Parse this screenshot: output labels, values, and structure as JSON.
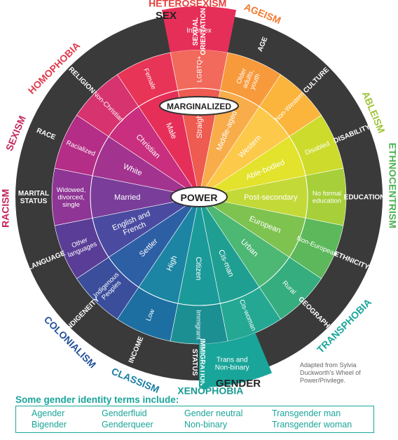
{
  "sectors": [
    {
      "key": "sexual-orientation",
      "outer_label": "HETEROSEXISM",
      "outer_color": "#e8413e",
      "ring_label": "SEXUAL ORIENTATION",
      "marginalized": "LGBTQ+",
      "privileged": "Straight",
      "marg_color": "#f26a5c",
      "priv_color": "#ee5b50"
    },
    {
      "key": "age",
      "outer_label": "AGEISM",
      "outer_color": "#f47a30",
      "ring_label": "AGE",
      "marginalized": "Older adults, youth",
      "privileged": "Middle-aged",
      "marg_color": "#f79a3c",
      "priv_color": "#f8ac4a"
    },
    {
      "key": "culture",
      "outer_label": "",
      "outer_color": "",
      "ring_label": "CULTURE",
      "marginalized": "Non-Western",
      "privileged": "Western",
      "marg_color": "#fbb53c",
      "priv_color": "#fcc94a"
    },
    {
      "key": "disability",
      "outer_label": "ABLEISM",
      "outer_color": "#9fc43a",
      "ring_label": "DISABILITY",
      "marginalized": "Disabled",
      "privileged": "Able-bodied",
      "marg_color": "#cddb2c",
      "priv_color": "#e3e22c"
    },
    {
      "key": "education",
      "outer_label": "ETHNOCENTRISM",
      "outer_color": "#4cb050",
      "ring_label": "EDUCATION",
      "marginalized": "No formal education",
      "privileged": "Post-secondary",
      "marg_color": "#a7cf3a",
      "priv_color": "#c3d938"
    },
    {
      "key": "ethnicity",
      "outer_label": "",
      "outer_color": "",
      "ring_label": "ETHNICITY",
      "marginalized": "Non-European",
      "privileged": "European",
      "marg_color": "#5cb85a",
      "priv_color": "#7ec34f"
    },
    {
      "key": "geography",
      "outer_label": "TRANSPHOBIA",
      "outer_color": "#1aa59a",
      "ring_label": "GEOGRAPHY",
      "marginalized": "Rural",
      "privileged": "Urban",
      "marg_color": "#35ad7e",
      "priv_color": "#4db774"
    },
    {
      "key": "gender",
      "outer_label": "",
      "outer_color": "",
      "ring_label": "",
      "marginalized": "Cis-woman",
      "privileged": "Cis-man",
      "marg_color": "#24a893",
      "priv_color": "#1f9f92"
    },
    {
      "key": "immigration",
      "outer_label": "XENOPHOBIA",
      "outer_color": "#1a9b92",
      "ring_label": "IMMIGRATION STATUS",
      "marginalized": "Immigrant",
      "privileged": "Citizen",
      "marg_color": "#1c8f93",
      "priv_color": "#1a9b9a"
    },
    {
      "key": "income",
      "outer_label": "CLASSISM",
      "outer_color": "#1b7fa3",
      "ring_label": "INCOME",
      "marginalized": "Low",
      "privileged": "High",
      "marg_color": "#1d6fa1",
      "priv_color": "#1c85a3"
    },
    {
      "key": "indigeneity",
      "outer_label": "COLONIALISM",
      "outer_color": "#23519a",
      "ring_label": "INDIGENEITY",
      "marginalized": "Indigenous Peoples",
      "privileged": "Settler",
      "marg_color": "#3a4e9c",
      "priv_color": "#2d5fa5"
    },
    {
      "key": "language",
      "outer_label": "",
      "outer_color": "",
      "ring_label": "LANGUAGE",
      "marginalized": "Other languages",
      "privileged": "English and French",
      "marg_color": "#5a3d96",
      "priv_color": "#4a4ba0"
    },
    {
      "key": "marital-status",
      "outer_label": "RACISM",
      "outer_color": "#c4245a",
      "ring_label": "MARITAL STATUS",
      "marginalized": "Widowed, divorced, single",
      "privileged": "Married",
      "marg_color": "#8e3595",
      "priv_color": "#7a3d9a"
    },
    {
      "key": "race",
      "outer_label": "SEXISM",
      "outer_color": "#c42a60",
      "ring_label": "RACE",
      "marginalized": "Racialized",
      "privileged": "White",
      "marg_color": "#b42d86",
      "priv_color": "#a2338f"
    },
    {
      "key": "religion",
      "outer_label": "HOMOPHOBIA",
      "outer_color": "#e03b4e",
      "ring_label": "RELIGION",
      "marginalized": "Non-Christian",
      "privileged": "Christian",
      "marg_color": "#d6336f",
      "priv_color": "#c92f7e"
    },
    {
      "key": "sex",
      "outer_label": "",
      "outer_color": "",
      "ring_label": "",
      "marginalized": "Female",
      "privileged": "Male",
      "marg_color": "#e83456",
      "priv_color": "#e62f58"
    }
  ],
  "sex_heading": "SEX",
  "sex_outer": "Intersex",
  "gender_heading": "GENDER",
  "gender_outer": "Trans and Non-binary",
  "center_label": "POWER",
  "marginalized_label": "MARGINALIZED",
  "credit": "Adapted from Sylvia Duckworth's Wheel of Power/Privilege.",
  "terms_title": "Some gender identity terms include:",
  "terms": [
    "Agender",
    "Bigender",
    "Genderfluid",
    "Genderqueer",
    "Gender neutral",
    "Non-binary",
    "Transgender man",
    "Transgender woman"
  ],
  "colors": {
    "dark_ring": "#3a3a3a",
    "teal": "#1aa59a",
    "sex_red": "#e62f58"
  }
}
